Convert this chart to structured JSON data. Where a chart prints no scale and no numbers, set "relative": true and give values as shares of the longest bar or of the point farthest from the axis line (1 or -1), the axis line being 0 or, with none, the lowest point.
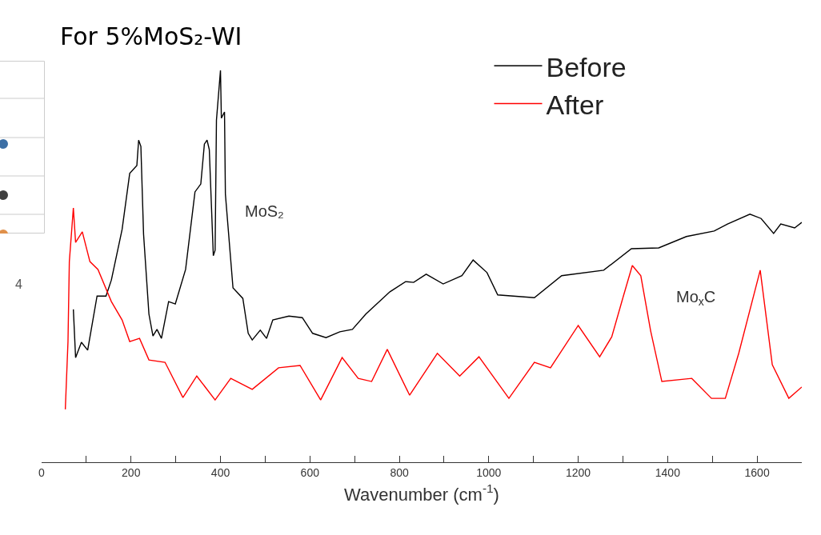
{
  "chart_data": {
    "type": "line",
    "relative": true,
    "title": "For 5%MoS₂-WI",
    "xlabel": "Wavenumber (cm$^{-1}$)",
    "xlim": [
      0,
      1700
    ],
    "xticks": [
      0,
      {
        "value": 100,
        "label": null
      },
      200,
      {
        "value": 300,
        "label": null
      },
      400,
      {
        "value": 500,
        "label": null
      },
      600,
      {
        "value": 700,
        "label": null
      },
      800,
      {
        "value": 900,
        "label": null
      },
      1000,
      {
        "value": 1100,
        "label": null
      },
      1200,
      {
        "value": 1300,
        "label": null
      },
      1400,
      {
        "value": 1500,
        "label": null
      },
      1600
    ],
    "grid": false,
    "legend": "top right",
    "tick_labels": "x",
    "annotations": [
      "MoS₂",
      "Mo$_{x}$C",
      "4"
    ],
    "series": [
      {
        "name": "Before",
        "color": "#000000",
        "x": [
          71,
          76,
          89,
          103,
          124,
          144,
          156,
          180,
          197,
          213,
          217,
          222,
          228,
          240,
          249,
          258,
          268,
          284,
          299,
          322,
          343,
          356,
          364,
          370,
          375,
          384,
          388,
          391,
          400,
          402,
          409,
          411,
          428,
          450,
          462,
          471,
          489,
          503,
          517,
          553,
          583,
          606,
          636,
          667,
          695,
          725,
          779,
          814,
          832,
          860,
          898,
          940,
          965,
          996,
          1020,
          1102,
          1163,
          1257,
          1319,
          1380,
          1442,
          1504,
          1534,
          1584,
          1609,
          1637,
          1653,
          1684,
          1700
        ],
        "values": [
          0.39,
          0.267,
          0.306,
          0.286,
          0.424,
          0.424,
          0.465,
          0.594,
          0.737,
          0.757,
          0.822,
          0.806,
          0.582,
          0.378,
          0.322,
          0.339,
          0.316,
          0.41,
          0.404,
          0.492,
          0.69,
          0.71,
          0.812,
          0.822,
          0.798,
          0.527,
          0.541,
          0.873,
          1.0,
          0.878,
          0.894,
          0.684,
          0.445,
          0.418,
          0.329,
          0.312,
          0.337,
          0.316,
          0.363,
          0.373,
          0.369,
          0.329,
          0.318,
          0.333,
          0.339,
          0.378,
          0.435,
          0.461,
          0.459,
          0.48,
          0.455,
          0.476,
          0.516,
          0.484,
          0.427,
          0.42,
          0.476,
          0.49,
          0.545,
          0.547,
          0.576,
          0.59,
          0.608,
          0.633,
          0.622,
          0.584,
          0.608,
          0.598,
          0.612
        ]
      },
      {
        "name": "After",
        "color": "#ff0000",
        "x": [
          53,
          59,
          62,
          71,
          76,
          91,
          108,
          126,
          156,
          180,
          197,
          219,
          240,
          276,
          316,
          347,
          388,
          423,
          471,
          530,
          578,
          624,
          672,
          708,
          738,
          773,
          823,
          885,
          935,
          978,
          1045,
          1102,
          1138,
          1200,
          1248,
          1275,
          1300,
          1321,
          1340,
          1362,
          1387,
          1454,
          1498,
          1529,
          1559,
          1607,
          1634,
          1671,
          1700
        ],
        "values": [
          0.135,
          0.308,
          0.512,
          0.649,
          0.561,
          0.588,
          0.512,
          0.492,
          0.41,
          0.363,
          0.308,
          0.316,
          0.261,
          0.255,
          0.165,
          0.22,
          0.159,
          0.214,
          0.186,
          0.241,
          0.247,
          0.159,
          0.267,
          0.214,
          0.206,
          0.288,
          0.171,
          0.278,
          0.22,
          0.269,
          0.163,
          0.255,
          0.241,
          0.349,
          0.269,
          0.32,
          0.42,
          0.502,
          0.476,
          0.335,
          0.206,
          0.214,
          0.163,
          0.163,
          0.278,
          0.49,
          0.249,
          0.163,
          0.192
        ]
      }
    ]
  }
}
